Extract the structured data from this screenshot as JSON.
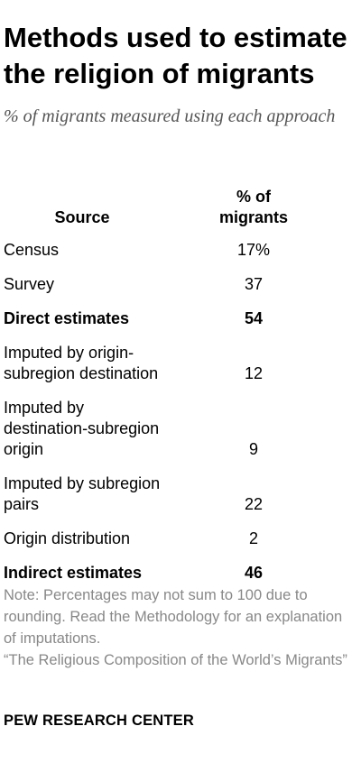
{
  "header": {
    "title": "Methods used to estimate the religion of migrants",
    "subtitle": "% of migrants measured using each approach"
  },
  "table": {
    "columns": [
      "Source",
      "% of migrants"
    ],
    "rows": [
      [
        "Census",
        "17%"
      ],
      [
        "Survey",
        "37"
      ],
      [
        "Direct estimates",
        "54"
      ],
      [
        "Imputed by origin-subregion destination",
        "12"
      ],
      [
        "Imputed by destination-subregion origin",
        "9"
      ],
      [
        "Imputed by subregion pairs",
        "22"
      ],
      [
        "Origin distribution",
        "2"
      ],
      [
        "Indirect estimates",
        "46"
      ]
    ]
  },
  "footer": {
    "note": "Note: Percentages may not sum to 100 due to rounding. Read the Methodology for an explanation of imputations.",
    "source": "“The Religious Composition of the World’s Migrants”",
    "brand": "PEW RESEARCH CENTER"
  }
}
